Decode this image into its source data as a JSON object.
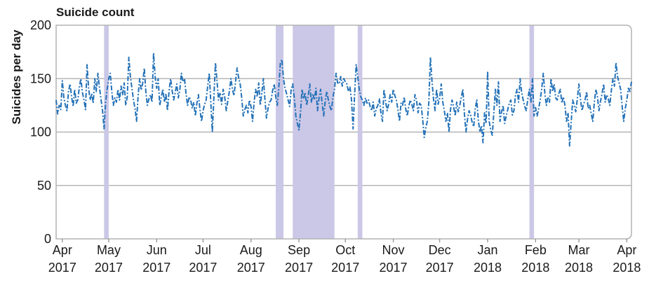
{
  "chart_data": {
    "type": "line",
    "title": "Suicide count",
    "xlabel": "",
    "ylabel": "Suicides per day",
    "ylim": [
      0,
      200
    ],
    "y_ticks": [
      0,
      50,
      100,
      150,
      200
    ],
    "xlim": [
      "2017-03-28",
      "2018-04-04"
    ],
    "x_ticks": [
      "2017-04-01",
      "2017-05-01",
      "2017-06-01",
      "2017-07-01",
      "2017-08-01",
      "2017-09-01",
      "2017-10-01",
      "2017-11-01",
      "2017-12-01",
      "2018-01-01",
      "2018-02-01",
      "2018-03-01",
      "2018-04-01"
    ],
    "x_tick_labels": [
      [
        "Apr",
        "2017"
      ],
      [
        "May",
        "2017"
      ],
      [
        "Jun",
        "2017"
      ],
      [
        "Jul",
        "2017"
      ],
      [
        "Aug",
        "2017"
      ],
      [
        "Sep",
        "2017"
      ],
      [
        "Oct",
        "2017"
      ],
      [
        "Nov",
        "2017"
      ],
      [
        "Dec",
        "2017"
      ],
      [
        "Jan",
        "2018"
      ],
      [
        "Feb",
        "2018"
      ],
      [
        "Mar",
        "2018"
      ],
      [
        "Apr",
        "2018"
      ]
    ],
    "grid": true,
    "legend": "none",
    "shaded_periods": [
      {
        "start": "2017-04-28",
        "end": "2017-05-01"
      },
      {
        "start": "2017-08-17",
        "end": "2017-08-22"
      },
      {
        "start": "2017-08-28",
        "end": "2017-09-24"
      },
      {
        "start": "2017-10-09",
        "end": "2017-10-12"
      },
      {
        "start": "2018-01-28",
        "end": "2018-01-31"
      }
    ],
    "colors": {
      "line": "#2472b8",
      "shading": "#cbc7e6",
      "grid": "#a9a9a9",
      "frame": "#b3b3b3"
    },
    "series": [
      {
        "x": [
          "2017-03-28",
          "2017-03-29",
          "2017-03-30",
          "2017-03-31",
          "2017-04-01",
          "2017-04-02",
          "2017-04-03",
          "2017-04-04",
          "2017-04-05",
          "2017-04-06",
          "2017-04-07",
          "2017-04-08",
          "2017-04-09",
          "2017-04-10",
          "2017-04-11",
          "2017-04-12",
          "2017-04-13",
          "2017-04-14",
          "2017-04-15",
          "2017-04-16",
          "2017-04-17",
          "2017-04-18",
          "2017-04-19",
          "2017-04-20",
          "2017-04-21",
          "2017-04-22",
          "2017-04-23",
          "2017-04-24",
          "2017-04-25",
          "2017-04-26",
          "2017-04-27",
          "2017-04-28",
          "2017-04-29",
          "2017-04-30",
          "2017-05-01",
          "2017-05-02",
          "2017-05-03",
          "2017-05-04",
          "2017-05-05",
          "2017-05-06",
          "2017-05-07",
          "2017-05-08",
          "2017-05-09",
          "2017-05-10",
          "2017-05-11",
          "2017-05-12",
          "2017-05-13",
          "2017-05-14",
          "2017-05-15",
          "2017-05-16",
          "2017-05-17",
          "2017-05-18",
          "2017-05-19",
          "2017-05-20",
          "2017-05-21",
          "2017-05-22",
          "2017-05-23",
          "2017-05-24",
          "2017-05-25",
          "2017-05-26",
          "2017-05-27",
          "2017-05-28",
          "2017-05-29",
          "2017-05-30",
          "2017-05-31",
          "2017-06-01",
          "2017-06-02",
          "2017-06-03",
          "2017-06-04",
          "2017-06-05",
          "2017-06-06",
          "2017-06-07",
          "2017-06-08",
          "2017-06-09",
          "2017-06-10",
          "2017-06-11",
          "2017-06-12",
          "2017-06-13",
          "2017-06-14",
          "2017-06-15",
          "2017-06-16",
          "2017-06-17",
          "2017-06-18",
          "2017-06-19",
          "2017-06-20",
          "2017-06-21",
          "2017-06-22",
          "2017-06-23",
          "2017-06-24",
          "2017-06-25",
          "2017-06-26",
          "2017-06-27",
          "2017-06-28",
          "2017-06-29",
          "2017-06-30",
          "2017-07-01",
          "2017-07-02",
          "2017-07-03",
          "2017-07-04",
          "2017-07-05",
          "2017-07-06",
          "2017-07-07",
          "2017-07-08",
          "2017-07-09",
          "2017-07-10",
          "2017-07-11",
          "2017-07-12",
          "2017-07-13",
          "2017-07-14",
          "2017-07-15",
          "2017-07-16",
          "2017-07-17",
          "2017-07-18",
          "2017-07-19",
          "2017-07-20",
          "2017-07-21",
          "2017-07-22",
          "2017-07-23",
          "2017-07-24",
          "2017-07-25",
          "2017-07-26",
          "2017-07-27",
          "2017-07-28",
          "2017-07-29",
          "2017-07-30",
          "2017-07-31",
          "2017-08-01",
          "2017-08-02",
          "2017-08-03",
          "2017-08-04",
          "2017-08-05",
          "2017-08-06",
          "2017-08-07",
          "2017-08-08",
          "2017-08-09",
          "2017-08-10",
          "2017-08-11",
          "2017-08-12",
          "2017-08-13",
          "2017-08-14",
          "2017-08-15",
          "2017-08-16",
          "2017-08-17",
          "2017-08-18",
          "2017-08-19",
          "2017-08-20",
          "2017-08-21",
          "2017-08-22",
          "2017-08-23",
          "2017-08-24",
          "2017-08-25",
          "2017-08-26",
          "2017-08-27",
          "2017-08-28",
          "2017-08-29",
          "2017-08-30",
          "2017-08-31",
          "2017-09-01",
          "2017-09-02",
          "2017-09-03",
          "2017-09-04",
          "2017-09-05",
          "2017-09-06",
          "2017-09-07",
          "2017-09-08",
          "2017-09-09",
          "2017-09-10",
          "2017-09-11",
          "2017-09-12",
          "2017-09-13",
          "2017-09-14",
          "2017-09-15",
          "2017-09-16",
          "2017-09-17",
          "2017-09-18",
          "2017-09-19",
          "2017-09-20",
          "2017-09-21",
          "2017-09-22",
          "2017-09-23",
          "2017-09-24",
          "2017-09-25",
          "2017-09-26",
          "2017-09-27",
          "2017-09-28",
          "2017-09-29",
          "2017-09-30",
          "2017-10-01",
          "2017-10-02",
          "2017-10-03",
          "2017-10-04",
          "2017-10-05",
          "2017-10-06",
          "2017-10-07",
          "2017-10-08",
          "2017-10-09",
          "2017-10-10",
          "2017-10-11",
          "2017-10-12",
          "2017-10-13",
          "2017-10-14",
          "2017-10-15",
          "2017-10-16",
          "2017-10-17",
          "2017-10-18",
          "2017-10-19",
          "2017-10-20",
          "2017-10-21",
          "2017-10-22",
          "2017-10-23",
          "2017-10-24",
          "2017-10-25",
          "2017-10-26",
          "2017-10-27",
          "2017-10-28",
          "2017-10-29",
          "2017-10-30",
          "2017-10-31",
          "2017-11-01",
          "2017-11-02",
          "2017-11-03",
          "2017-11-04",
          "2017-11-05",
          "2017-11-06",
          "2017-11-07",
          "2017-11-08",
          "2017-11-09",
          "2017-11-10",
          "2017-11-11",
          "2017-11-12",
          "2017-11-13",
          "2017-11-14",
          "2017-11-15",
          "2017-11-16",
          "2017-11-17",
          "2017-11-18",
          "2017-11-19",
          "2017-11-20",
          "2017-11-21",
          "2017-11-22",
          "2017-11-23",
          "2017-11-24",
          "2017-11-25",
          "2017-11-26",
          "2017-11-27",
          "2017-11-28",
          "2017-11-29",
          "2017-11-30",
          "2017-12-01",
          "2017-12-02",
          "2017-12-03",
          "2017-12-04",
          "2017-12-05",
          "2017-12-06",
          "2017-12-07",
          "2017-12-08",
          "2017-12-09",
          "2017-12-10",
          "2017-12-11",
          "2017-12-12",
          "2017-12-13",
          "2017-12-14",
          "2017-12-15",
          "2017-12-16",
          "2017-12-17",
          "2017-12-18",
          "2017-12-19",
          "2017-12-20",
          "2017-12-21",
          "2017-12-22",
          "2017-12-23",
          "2017-12-24",
          "2017-12-25",
          "2017-12-26",
          "2017-12-27",
          "2017-12-28",
          "2017-12-29",
          "2017-12-30",
          "2017-12-31",
          "2018-01-01",
          "2018-01-02",
          "2018-01-03",
          "2018-01-04",
          "2018-01-05",
          "2018-01-06",
          "2018-01-07",
          "2018-01-08",
          "2018-01-09",
          "2018-01-10",
          "2018-01-11",
          "2018-01-12",
          "2018-01-13",
          "2018-01-14",
          "2018-01-15",
          "2018-01-16",
          "2018-01-17",
          "2018-01-18",
          "2018-01-19",
          "2018-01-20",
          "2018-01-21",
          "2018-01-22",
          "2018-01-23",
          "2018-01-24",
          "2018-01-25",
          "2018-01-26",
          "2018-01-27",
          "2018-01-28",
          "2018-01-29",
          "2018-01-30",
          "2018-01-31",
          "2018-02-01",
          "2018-02-02",
          "2018-02-03",
          "2018-02-04",
          "2018-02-05",
          "2018-02-06",
          "2018-02-07",
          "2018-02-08",
          "2018-02-09",
          "2018-02-10",
          "2018-02-11",
          "2018-02-12",
          "2018-02-13",
          "2018-02-14",
          "2018-02-15",
          "2018-02-16",
          "2018-02-17",
          "2018-02-18",
          "2018-02-19",
          "2018-02-20",
          "2018-02-21",
          "2018-02-22",
          "2018-02-23",
          "2018-02-24",
          "2018-02-25",
          "2018-02-26",
          "2018-02-27",
          "2018-02-28",
          "2018-03-01",
          "2018-03-02",
          "2018-03-03",
          "2018-03-04",
          "2018-03-05",
          "2018-03-06",
          "2018-03-07",
          "2018-03-08",
          "2018-03-09",
          "2018-03-10",
          "2018-03-11",
          "2018-03-12",
          "2018-03-13",
          "2018-03-14",
          "2018-03-15",
          "2018-03-16",
          "2018-03-17",
          "2018-03-18",
          "2018-03-19",
          "2018-03-20",
          "2018-03-21",
          "2018-03-22",
          "2018-03-23",
          "2018-03-24",
          "2018-03-25",
          "2018-03-26",
          "2018-03-27",
          "2018-03-28",
          "2018-03-29",
          "2018-03-30",
          "2018-03-31",
          "2018-04-01",
          "2018-04-02",
          "2018-04-03",
          "2018-04-04"
        ],
        "y": [
          130,
          117,
          125,
          121,
          148,
          132,
          125,
          120,
          138,
          145,
          133,
          124,
          140,
          127,
          130,
          142,
          150,
          137,
          130,
          121,
          163,
          141,
          130,
          136,
          127,
          150,
          138,
          155,
          142,
          131,
          120,
          103,
          128,
          140,
          150,
          155,
          138,
          125,
          132,
          128,
          140,
          130,
          143,
          135,
          146,
          125,
          133,
          170,
          152,
          141,
          130,
          122,
          110,
          134,
          150,
          139,
          146,
          160,
          138,
          125,
          131,
          135,
          128,
          174,
          152,
          141,
          150,
          125,
          133,
          140,
          128,
          136,
          120,
          138,
          150,
          139,
          130,
          137,
          145,
          132,
          140,
          155,
          147,
          150,
          136,
          125,
          133,
          130,
          122,
          128,
          115,
          127,
          135,
          121,
          110,
          120,
          126,
          130,
          143,
          155,
          128,
          100,
          132,
          165,
          148,
          130,
          137,
          126,
          140,
          133,
          120,
          129,
          138,
          150,
          140,
          134,
          147,
          160,
          151,
          145,
          132,
          115,
          121,
          125,
          118,
          130,
          124,
          110,
          128,
          140,
          133,
          146,
          125,
          137,
          150,
          131,
          113,
          122,
          128,
          130,
          139,
          145,
          133,
          125,
          142,
          165,
          168,
          150,
          141,
          136,
          130,
          124,
          140,
          145,
          132,
          115,
          108,
          102,
          118,
          140,
          131,
          137,
          125,
          134,
          145,
          128,
          136,
          130,
          141,
          120,
          132,
          140,
          127,
          115,
          129,
          138,
          130,
          124,
          120,
          133,
          140,
          155,
          146,
          145,
          152,
          143,
          150,
          147,
          145,
          138,
          142,
          130,
          103,
          135,
          163,
          152,
          140,
          133,
          130,
          125,
          132,
          127,
          130,
          124,
          120,
          128,
          115,
          122,
          125,
          131,
          118,
          110,
          140,
          129,
          120,
          126,
          135,
          128,
          140,
          134,
          130,
          121,
          110,
          127,
          125,
          133,
          122,
          115,
          124,
          130,
          126,
          120,
          135,
          130,
          118,
          127,
          125,
          112,
          95,
          104,
          110,
          128,
          170,
          148,
          131,
          120,
          140,
          126,
          132,
          145,
          128,
          120,
          110,
          118,
          100,
          121,
          130,
          124,
          115,
          128,
          119,
          125,
          133,
          140,
          117,
          100,
          112,
          120,
          116,
          109,
          105,
          122,
          130,
          111,
          100,
          106,
          90,
          118,
          108,
          157,
          110,
          102,
          97,
          118,
          140,
          125,
          147,
          110,
          119,
          125,
          108,
          115,
          121,
          127,
          130,
          116,
          120,
          134,
          140,
          128,
          150,
          137,
          130,
          124,
          120,
          131,
          140,
          128,
          150,
          115,
          123,
          115,
          122,
          130,
          141,
          155,
          136,
          125,
          133,
          128,
          150,
          138,
          145,
          132,
          130,
          136,
          140,
          127,
          133,
          125,
          110,
          118,
          87,
          109,
          130,
          125,
          119,
          131,
          145,
          131,
          120,
          126,
          130,
          138,
          122,
          125,
          117,
          110,
          128,
          140,
          133,
          120,
          129,
          136,
          145,
          128,
          135,
          131,
          125,
          139,
          150,
          143,
          165,
          152,
          146,
          140,
          124,
          110,
          122,
          130,
          141,
          138,
          147
        ]
      }
    ]
  }
}
